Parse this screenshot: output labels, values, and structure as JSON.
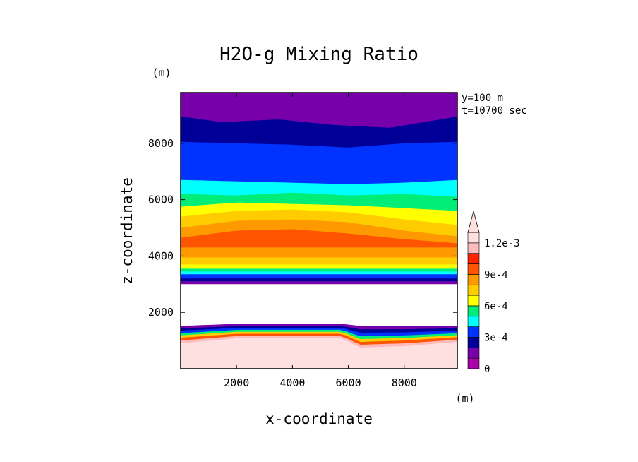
{
  "chart_data": {
    "type": "filled-contour",
    "title": "H2O-g Mixing Ratio",
    "xlabel": "x-coordinate",
    "ylabel": "z-coordinate",
    "x_unit": "(m)",
    "y_unit": "(m)",
    "xlim": [
      0,
      9900
    ],
    "ylim": [
      0,
      9800
    ],
    "x_ticks": [
      2000,
      4000,
      6000,
      8000
    ],
    "y_ticks": [
      2000,
      4000,
      6000,
      8000
    ],
    "x_tick_labels": [
      "2000",
      "4000",
      "6000",
      "8000"
    ],
    "y_tick_labels": [
      "2000",
      "4000",
      "6000",
      "8000"
    ],
    "annotations": [
      "y=100 m",
      "t=10700 sec"
    ],
    "colorbar": {
      "levels": [
        0,
        0.0001,
        0.0002,
        0.0003,
        0.0004,
        0.0005,
        0.0006,
        0.0007,
        0.0008,
        0.0009,
        0.001,
        0.0011,
        0.0012
      ],
      "tick_labels": [
        "0",
        "3e-4",
        "6e-4",
        "9e-4",
        "1.2e-3"
      ],
      "tick_levels": [
        0,
        0.0003,
        0.0006,
        0.0009,
        0.0012
      ],
      "colors": [
        "#aa00aa",
        "#7700aa",
        "#000099",
        "#0033ff",
        "#00ffff",
        "#00ee77",
        "#ffff00",
        "#ffcc00",
        "#ff9900",
        "#ff5500",
        "#ff2200",
        "#ffbbbb",
        "#ffe0e0"
      ],
      "extend": "max"
    },
    "bands": [
      {
        "level": 0.0013,
        "z_bottom": 0,
        "z_top_profile": [
          [
            0,
            800
          ],
          [
            2000,
            1000
          ],
          [
            5800,
            1000
          ],
          [
            6400,
            650
          ],
          [
            8000,
            700
          ],
          [
            9900,
            850
          ]
        ]
      },
      {
        "level": 0.0012,
        "z_bottom": 0,
        "z_top_profile": [
          [
            0,
            900
          ],
          [
            2000,
            1080
          ],
          [
            5800,
            1080
          ],
          [
            6400,
            750
          ],
          [
            8000,
            800
          ],
          [
            9900,
            950
          ]
        ]
      },
      {
        "level": 0.0011,
        "z_bottom": 0,
        "z_top_profile": [
          [
            0,
            1000
          ],
          [
            2000,
            1160
          ],
          [
            5800,
            1160
          ],
          [
            6400,
            850
          ],
          [
            8000,
            900
          ],
          [
            9900,
            1030
          ]
        ]
      },
      {
        "level": 0.0009,
        "z_bottom": 0,
        "z_top_profile": [
          [
            0,
            1100
          ],
          [
            2000,
            1240
          ],
          [
            5800,
            1240
          ],
          [
            6400,
            950
          ],
          [
            8000,
            1000
          ],
          [
            9900,
            1120
          ]
        ]
      },
      {
        "level": 0.0007,
        "z_bottom": 0,
        "z_top_profile": [
          [
            0,
            1180
          ],
          [
            2000,
            1310
          ],
          [
            5800,
            1310
          ],
          [
            6400,
            1050
          ],
          [
            8000,
            1090
          ],
          [
            9900,
            1190
          ]
        ]
      },
      {
        "level": 0.0005,
        "z_bottom": 0,
        "z_top_profile": [
          [
            0,
            1260
          ],
          [
            2000,
            1380
          ],
          [
            5800,
            1380
          ],
          [
            6400,
            1150
          ],
          [
            8000,
            1180
          ],
          [
            9900,
            1260
          ]
        ]
      },
      {
        "level": 0.0003,
        "z_bottom": 0,
        "z_top_profile": [
          [
            0,
            1350
          ],
          [
            2000,
            1450
          ],
          [
            5800,
            1450
          ],
          [
            6400,
            1280
          ],
          [
            8000,
            1290
          ],
          [
            9900,
            1350
          ]
        ]
      },
      {
        "level": 0.0002,
        "z_bottom": 0,
        "z_top_profile": [
          [
            0,
            1430
          ],
          [
            2000,
            1510
          ],
          [
            5800,
            1510
          ],
          [
            6400,
            1400
          ],
          [
            8000,
            1400
          ],
          [
            9900,
            1440
          ]
        ]
      },
      {
        "level": 0.0001,
        "z_bottom": 0,
        "z_top_profile": [
          [
            0,
            1520
          ],
          [
            2000,
            1590
          ],
          [
            5800,
            1590
          ],
          [
            6400,
            1520
          ],
          [
            8000,
            1510
          ],
          [
            9900,
            1520
          ]
        ]
      }
    ],
    "upper_bands": [
      {
        "level": 0.0001,
        "z_bottom": 3000,
        "z_top": 9800
      },
      {
        "level": 0.0002,
        "z_bottom": 3100,
        "z_top_profile": [
          [
            0,
            8950
          ],
          [
            1500,
            8750
          ],
          [
            3500,
            8850
          ],
          [
            5500,
            8650
          ],
          [
            7500,
            8550
          ],
          [
            9900,
            8950
          ]
        ]
      },
      {
        "level": 0.0003,
        "z_bottom": 3200,
        "z_top_profile": [
          [
            0,
            8050
          ],
          [
            2000,
            8000
          ],
          [
            4000,
            7950
          ],
          [
            6000,
            7850
          ],
          [
            8000,
            8000
          ],
          [
            9900,
            8050
          ]
        ]
      },
      {
        "level": 0.0003,
        "z_bottom": 3250,
        "z_top_profile": [
          [
            0,
            7350
          ],
          [
            2000,
            7250
          ],
          [
            4000,
            7300
          ],
          [
            6000,
            7150
          ],
          [
            7000,
            6950
          ],
          [
            8000,
            7250
          ],
          [
            9900,
            7300
          ]
        ]
      },
      {
        "level": 0.0004,
        "z_bottom": 3350,
        "z_top_profile": [
          [
            0,
            6700
          ],
          [
            2000,
            6650
          ],
          [
            4000,
            6600
          ],
          [
            6000,
            6550
          ],
          [
            8000,
            6600
          ],
          [
            9900,
            6700
          ]
        ]
      },
      {
        "level": 0.0005,
        "z_bottom": 3450,
        "z_top_profile": [
          [
            0,
            6200
          ],
          [
            2000,
            6150
          ],
          [
            4000,
            6250
          ],
          [
            6000,
            6150
          ],
          [
            8000,
            6200
          ],
          [
            9900,
            6100
          ]
        ]
      },
      {
        "level": 0.0006,
        "z_bottom": 3550,
        "z_top_profile": [
          [
            0,
            5750
          ],
          [
            2000,
            5900
          ],
          [
            4000,
            5850
          ],
          [
            6000,
            5800
          ],
          [
            8000,
            5700
          ],
          [
            9900,
            5600
          ]
        ]
      },
      {
        "level": 0.0007,
        "z_bottom": 3700,
        "z_top_profile": [
          [
            0,
            5400
          ],
          [
            2000,
            5600
          ],
          [
            4000,
            5650
          ],
          [
            6000,
            5550
          ],
          [
            8000,
            5300
          ],
          [
            9900,
            5100
          ]
        ]
      },
      {
        "level": 0.0008,
        "z_bottom": 3950,
        "z_top_profile": [
          [
            0,
            5000
          ],
          [
            2000,
            5250
          ],
          [
            4000,
            5300
          ],
          [
            6000,
            5200
          ],
          [
            8000,
            4900
          ],
          [
            9900,
            4700
          ]
        ]
      },
      {
        "level": 0.0009,
        "z_bottom": 4300,
        "z_top_profile": [
          [
            0,
            4650
          ],
          [
            2000,
            4900
          ],
          [
            4000,
            4950
          ],
          [
            6000,
            4800
          ],
          [
            8000,
            4600
          ],
          [
            9900,
            4450
          ]
        ]
      }
    ]
  }
}
